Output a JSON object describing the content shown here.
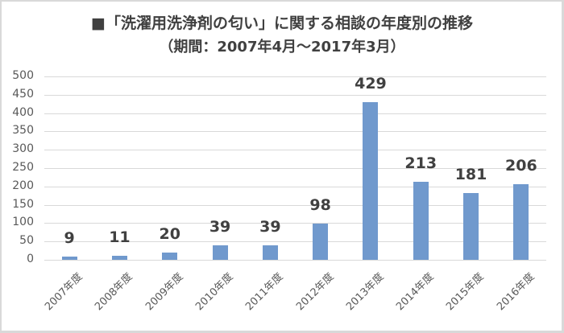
{
  "chart_data": {
    "type": "bar",
    "title": "■「洗濯用洗浄剤の匂い」に関する相談の年度別の推移",
    "subtitle": "（期間：2007年4月～2017年3月）",
    "categories": [
      "2007年度",
      "2008年度",
      "2009年度",
      "2010年度",
      "2011年度",
      "2012年度",
      "2013年度",
      "2014年度",
      "2015年度",
      "2016年度"
    ],
    "values": [
      9,
      11,
      20,
      39,
      39,
      98,
      429,
      213,
      181,
      206
    ],
    "data_labels": [
      "9",
      "11",
      "20",
      "39",
      "39",
      "98",
      "429",
      "213",
      "181",
      "206"
    ],
    "xlabel": "",
    "ylabel": "",
    "ylim": [
      0,
      500
    ],
    "yticks": [
      "500",
      "450",
      "400",
      "350",
      "300",
      "250",
      "200",
      "150",
      "100",
      "50",
      "0"
    ],
    "grid": true,
    "legend": null,
    "bar_color": "#7099cd"
  }
}
